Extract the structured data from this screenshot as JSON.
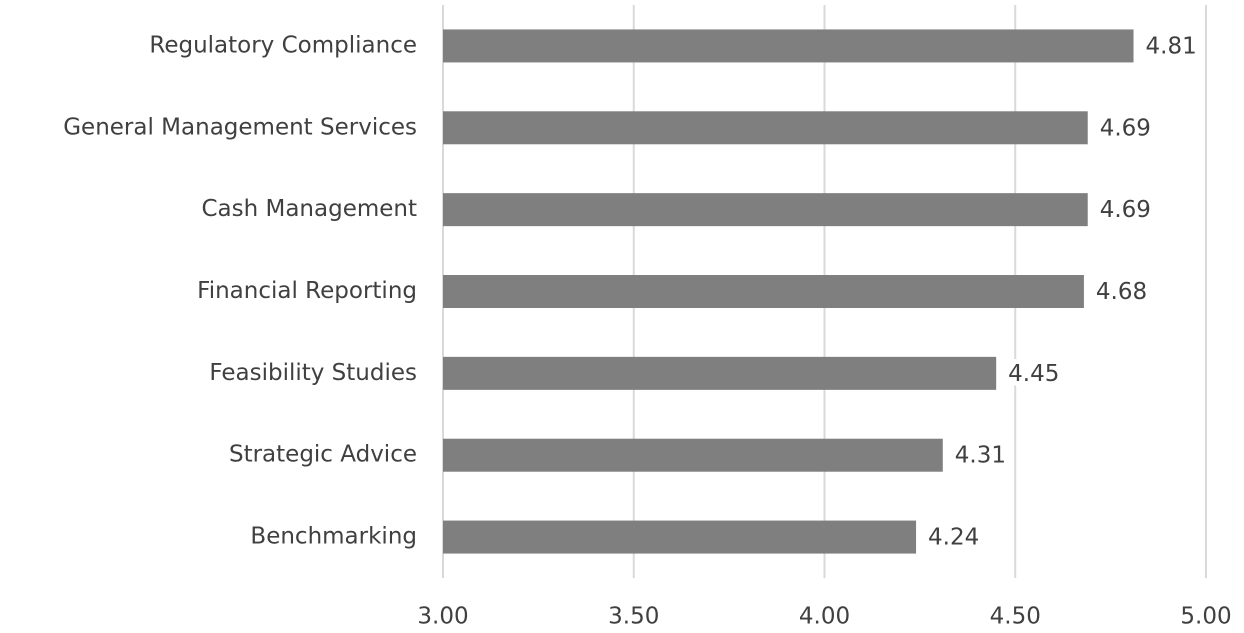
{
  "chart_data": {
    "type": "bar",
    "orientation": "horizontal",
    "categories": [
      "Regulatory Compliance",
      "General Management Services",
      "Cash Management",
      "Financial Reporting",
      "Feasibility Studies",
      "Strategic Advice",
      "Benchmarking"
    ],
    "values": [
      4.81,
      4.69,
      4.69,
      4.68,
      4.45,
      4.31,
      4.24
    ],
    "color": "#7f7f7f",
    "xlim": [
      3,
      5
    ],
    "xticks": [
      {
        "value": 3,
        "label": "3.00"
      },
      {
        "value": 3.5,
        "label": "3.50"
      },
      {
        "value": 4,
        "label": "4.00"
      },
      {
        "value": 4.5,
        "label": "4.50"
      },
      {
        "value": 5,
        "label": "5.00"
      }
    ],
    "grid": true
  }
}
